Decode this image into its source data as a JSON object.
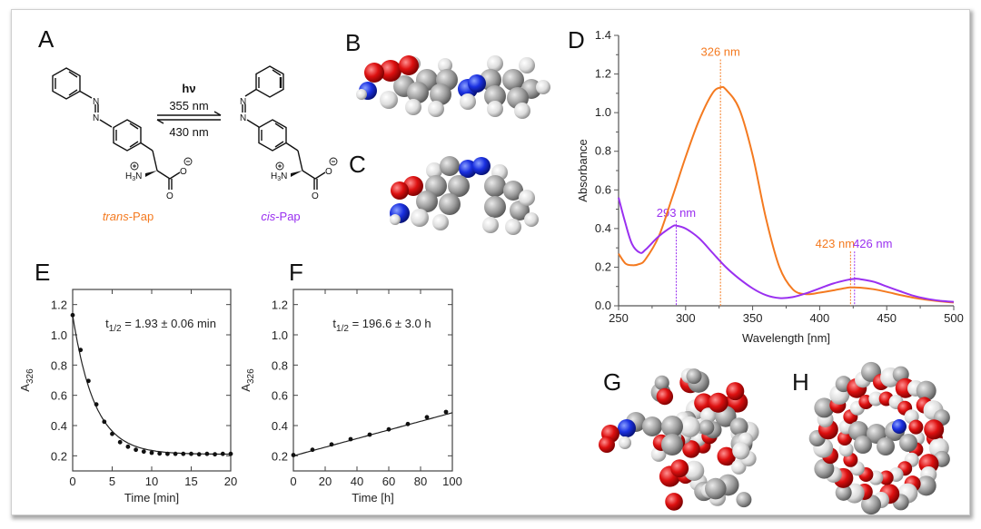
{
  "panels": {
    "a": "A",
    "b": "B",
    "c": "C",
    "d": "D",
    "e": "E",
    "f": "F",
    "g": "G",
    "h": "H"
  },
  "scheme": {
    "light": "hν",
    "forward_wavelength": "355 nm",
    "reverse_wavelength": "430 nm",
    "trans_prefix": "trans",
    "cis_prefix": "cis",
    "suffix": "-Pap",
    "atom_n": "N",
    "atom_o": "O",
    "amine": "H",
    "amine_sub": "3",
    "amine_n": "N",
    "trans_color": "#f47a20",
    "cis_color": "#9a30f0"
  },
  "chart_data": [
    {
      "id": "D",
      "type": "line",
      "xlabel": "Wavelength [nm]",
      "ylabel": "Absorbance",
      "xlim": [
        250,
        500
      ],
      "ylim": [
        0,
        1.4
      ],
      "xticks": [
        "250",
        "300",
        "350",
        "400",
        "450",
        "500"
      ],
      "yticks": [
        "0.0",
        "0.2",
        "0.4",
        "0.6",
        "0.8",
        "1.0",
        "1.2",
        "1.4"
      ],
      "series": [
        {
          "name": "trans-Pap",
          "color": "#f47a20",
          "x": [
            250,
            255,
            260,
            265,
            270,
            280,
            290,
            300,
            310,
            320,
            326,
            330,
            340,
            350,
            360,
            370,
            380,
            390,
            400,
            410,
            420,
            423,
            430,
            440,
            450,
            460,
            470,
            480,
            490,
            500
          ],
          "y": [
            0.27,
            0.22,
            0.21,
            0.215,
            0.24,
            0.36,
            0.56,
            0.77,
            0.96,
            1.1,
            1.13,
            1.12,
            1.02,
            0.78,
            0.45,
            0.2,
            0.085,
            0.06,
            0.068,
            0.08,
            0.093,
            0.095,
            0.094,
            0.086,
            0.072,
            0.056,
            0.042,
            0.031,
            0.023,
            0.017
          ]
        },
        {
          "name": "cis-Pap",
          "color": "#9a30f0",
          "x": [
            250,
            255,
            260,
            266,
            270,
            280,
            290,
            293,
            300,
            310,
            320,
            330,
            340,
            350,
            360,
            370,
            380,
            390,
            400,
            410,
            420,
            426,
            430,
            440,
            450,
            460,
            470,
            480,
            490,
            500
          ],
          "y": [
            0.56,
            0.43,
            0.32,
            0.275,
            0.29,
            0.36,
            0.41,
            0.415,
            0.4,
            0.35,
            0.275,
            0.2,
            0.14,
            0.09,
            0.055,
            0.04,
            0.045,
            0.065,
            0.09,
            0.115,
            0.133,
            0.14,
            0.138,
            0.125,
            0.1,
            0.075,
            0.052,
            0.036,
            0.026,
            0.02
          ]
        }
      ],
      "annotations": [
        {
          "text": "326 nm",
          "x": 326,
          "y": 1.13,
          "color": "#f47a20"
        },
        {
          "text": "293 nm",
          "x": 293,
          "y": 0.415,
          "color": "#9a30f0"
        },
        {
          "text": "423 nm",
          "x": 423,
          "y": 0.095,
          "color": "#f47a20"
        },
        {
          "text": "426 nm",
          "x": 426,
          "y": 0.14,
          "color": "#9a30f0"
        }
      ]
    },
    {
      "id": "E",
      "type": "scatter",
      "xlabel": "Time [min]",
      "ylabel": "A",
      "ylabel_sub": "326",
      "xlim": [
        0,
        20
      ],
      "ylim": [
        0.1,
        1.3
      ],
      "xticks": [
        "0",
        "5",
        "10",
        "15",
        "20"
      ],
      "yticks": [
        "0.2",
        "0.4",
        "0.6",
        "0.8",
        "1.0",
        "1.2"
      ],
      "annotation_main": "t",
      "annotation_sub": "1/2",
      "annotation_rest": " = 1.93 ± 0.06 min",
      "x": [
        0,
        1,
        2,
        3,
        4,
        5,
        6,
        7,
        8,
        9,
        10,
        11,
        12,
        13,
        14,
        15,
        16,
        17,
        18,
        19,
        20
      ],
      "y": [
        1.13,
        0.9,
        0.695,
        0.54,
        0.425,
        0.345,
        0.29,
        0.26,
        0.24,
        0.228,
        0.22,
        0.215,
        0.213,
        0.213,
        0.213,
        0.213,
        0.21,
        0.213,
        0.21,
        0.213,
        0.213
      ],
      "fit": {
        "type": "exponential",
        "offset": 0.21,
        "amplitude": 0.92,
        "half_life": 1.93
      }
    },
    {
      "id": "F",
      "type": "scatter",
      "xlabel": "Time [h]",
      "ylabel": "A",
      "ylabel_sub": "326",
      "xlim": [
        0,
        100
      ],
      "ylim": [
        0.1,
        1.3
      ],
      "xticks": [
        "0",
        "20",
        "40",
        "60",
        "80",
        "100"
      ],
      "yticks": [
        "0.2",
        "0.4",
        "0.6",
        "0.8",
        "1.0",
        "1.2"
      ],
      "annotation_main": "t",
      "annotation_sub": "1/2",
      "annotation_rest": " = 196.6 ± 3.0 h",
      "x": [
        0,
        12,
        24,
        36,
        48,
        60,
        72,
        84,
        96
      ],
      "y": [
        0.205,
        0.24,
        0.275,
        0.31,
        0.34,
        0.375,
        0.41,
        0.455,
        0.49
      ],
      "fit": {
        "type": "line",
        "y0": 0.2,
        "y100": 0.485
      }
    }
  ]
}
